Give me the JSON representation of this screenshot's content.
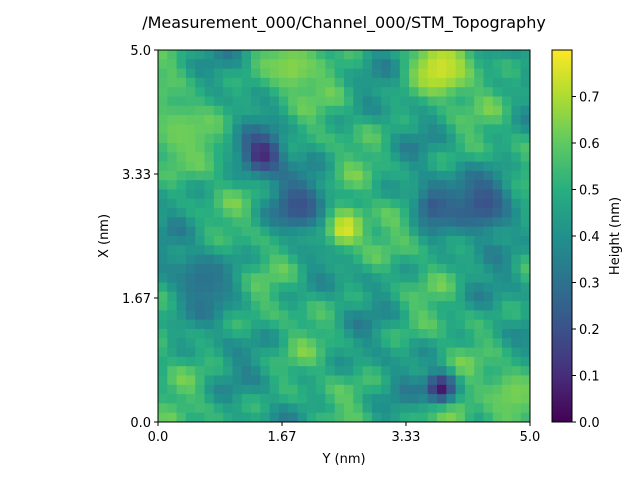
{
  "chart_data": {
    "type": "heatmap",
    "title": "/Measurement_000/Channel_000/STM_Topography",
    "xlabel": "Y (nm)",
    "ylabel": "X (nm)",
    "xlim": [
      0.0,
      5.0
    ],
    "ylim": [
      0.0,
      5.0
    ],
    "xticks": [
      "0.0",
      "1.67",
      "3.33",
      "5.0"
    ],
    "yticks": [
      "0.0",
      "1.67",
      "3.33",
      "5.0"
    ],
    "xtick_values": [
      0.0,
      1.667,
      3.333,
      5.0
    ],
    "ytick_values": [
      0.0,
      1.667,
      3.333,
      5.0
    ],
    "colormap": "viridis",
    "colorbar": {
      "label": "Height (nm)",
      "range": [
        0.0,
        0.8
      ],
      "ticks": [
        "0.0",
        "0.1",
        "0.2",
        "0.3",
        "0.4",
        "0.5",
        "0.6",
        "0.7"
      ],
      "tick_values": [
        0.0,
        0.1,
        0.2,
        0.3,
        0.4,
        0.5,
        0.6,
        0.7
      ]
    },
    "grid_size": [
      40,
      40
    ],
    "features": [
      {
        "kind": "peak",
        "y_nm": 2.5,
        "x_nm": 2.6,
        "height": 0.78,
        "sigma_nm": 0.2
      },
      {
        "kind": "peak",
        "y_nm": 3.8,
        "x_nm": 4.75,
        "height": 0.74,
        "sigma_nm": 0.3
      },
      {
        "kind": "peak",
        "y_nm": 1.8,
        "x_nm": 4.75,
        "height": 0.65,
        "sigma_nm": 0.3
      },
      {
        "kind": "peak",
        "y_nm": 0.3,
        "x_nm": 3.9,
        "height": 0.62,
        "sigma_nm": 0.35
      },
      {
        "kind": "peak",
        "y_nm": 4.8,
        "x_nm": 0.4,
        "height": 0.63,
        "sigma_nm": 0.3
      },
      {
        "kind": "peak",
        "y_nm": 3.9,
        "x_nm": 0.1,
        "height": 0.66,
        "sigma_nm": 0.2
      },
      {
        "kind": "pit",
        "y_nm": 1.4,
        "x_nm": 3.6,
        "height": 0.08,
        "sigma_nm": 0.2
      },
      {
        "kind": "pit",
        "y_nm": 3.8,
        "x_nm": 0.45,
        "height": 0.05,
        "sigma_nm": 0.15
      },
      {
        "kind": "pit",
        "y_nm": 1.9,
        "x_nm": 2.9,
        "height": 0.2,
        "sigma_nm": 0.25
      },
      {
        "kind": "pit",
        "y_nm": 4.4,
        "x_nm": 2.95,
        "height": 0.2,
        "sigma_nm": 0.3
      },
      {
        "kind": "pit",
        "y_nm": 3.7,
        "x_nm": 2.9,
        "height": 0.22,
        "sigma_nm": 0.2
      },
      {
        "kind": "pit",
        "y_nm": 0.6,
        "x_nm": 1.9,
        "height": 0.3,
        "sigma_nm": 0.3
      }
    ],
    "background_mean": 0.48
  }
}
